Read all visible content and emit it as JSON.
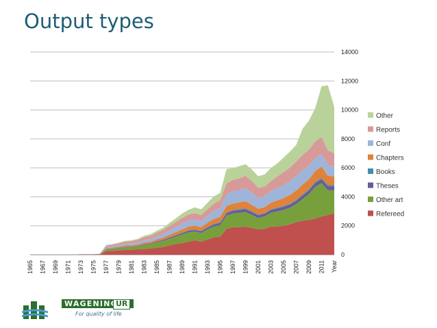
{
  "slide": {
    "title": "Output types"
  },
  "logo": {
    "brand": "WAGENINGEN",
    "brand_suffix": "UR",
    "tagline": "For quality of life"
  },
  "colors": {
    "Refereed": "#c0504d",
    "Other art": "#77a03c",
    "Theses": "#6a5a9b",
    "Books": "#3f8fa8",
    "Chapters": "#e0823a",
    "Conf": "#9fb4d9",
    "Reports": "#d79a99",
    "Other": "#b9d29a"
  },
  "chart_data": {
    "type": "area",
    "stacked": true,
    "xlabel": "Year",
    "ylabel": "",
    "ylim": [
      0,
      14000
    ],
    "y_ticks": [
      0,
      2000,
      4000,
      6000,
      8000,
      10000,
      12000,
      14000
    ],
    "y_axis_side": "right",
    "grid": true,
    "legend": "right, stacked top to bottom",
    "x_tick_labels": [
      "1965",
      "1967",
      "1969",
      "1971",
      "1973",
      "1975",
      "1977",
      "1979",
      "1981",
      "1983",
      "1985",
      "1987",
      "1989",
      "1991",
      "1993",
      "1995",
      "1997",
      "1999",
      "2001",
      "2003",
      "2005",
      "2007",
      "2009",
      "2011"
    ],
    "x": [
      1965,
      1966,
      1967,
      1968,
      1969,
      1970,
      1971,
      1972,
      1973,
      1974,
      1975,
      1976,
      1977,
      1978,
      1979,
      1980,
      1981,
      1982,
      1983,
      1984,
      1985,
      1986,
      1987,
      1988,
      1989,
      1990,
      1991,
      1992,
      1993,
      1994,
      1995,
      1996,
      1997,
      1998,
      1999,
      2000,
      2001,
      2002,
      2003,
      2004,
      2005,
      2006,
      2007,
      2008,
      2009,
      2010,
      2011,
      2012,
      2013
    ],
    "series": [
      {
        "name": "Refereed",
        "values": [
          0,
          0,
          0,
          0,
          0,
          0,
          0,
          0,
          20,
          20,
          20,
          30,
          250,
          270,
          300,
          330,
          350,
          380,
          400,
          430,
          480,
          530,
          650,
          750,
          800,
          900,
          1000,
          900,
          1050,
          1200,
          1250,
          1800,
          1900,
          1900,
          1950,
          1850,
          1750,
          1800,
          1950,
          1950,
          2000,
          2100,
          2250,
          2350,
          2400,
          2500,
          2650,
          2750,
          2850
        ]
      },
      {
        "name": "Other art",
        "values": [
          0,
          0,
          0,
          0,
          0,
          0,
          0,
          0,
          10,
          10,
          10,
          20,
          120,
          130,
          150,
          180,
          180,
          200,
          280,
          300,
          380,
          430,
          450,
          500,
          600,
          650,
          600,
          600,
          700,
          750,
          800,
          900,
          950,
          1000,
          1000,
          900,
          800,
          850,
          950,
          1050,
          1100,
          1150,
          1250,
          1500,
          1800,
          2200,
          2300,
          1700,
          1600
        ]
      },
      {
        "name": "Theses",
        "values": [
          0,
          0,
          0,
          0,
          0,
          0,
          0,
          0,
          0,
          0,
          0,
          0,
          20,
          20,
          30,
          30,
          30,
          30,
          40,
          40,
          50,
          60,
          70,
          80,
          90,
          100,
          100,
          110,
          120,
          130,
          140,
          160,
          170,
          180,
          190,
          180,
          170,
          170,
          180,
          190,
          200,
          210,
          220,
          230,
          240,
          250,
          260,
          270,
          280
        ]
      },
      {
        "name": "Books",
        "values": [
          0,
          0,
          0,
          0,
          0,
          0,
          0,
          0,
          0,
          0,
          0,
          0,
          10,
          10,
          10,
          10,
          10,
          10,
          20,
          20,
          20,
          20,
          30,
          30,
          30,
          40,
          40,
          40,
          40,
          50,
          50,
          60,
          60,
          60,
          60,
          60,
          50,
          50,
          60,
          60,
          60,
          60,
          70,
          70,
          70,
          80,
          80,
          80,
          80
        ]
      },
      {
        "name": "Chapters",
        "values": [
          0,
          0,
          0,
          0,
          0,
          0,
          0,
          0,
          0,
          0,
          0,
          0,
          50,
          60,
          70,
          80,
          80,
          90,
          100,
          110,
          130,
          150,
          180,
          200,
          230,
          250,
          270,
          250,
          300,
          350,
          380,
          450,
          450,
          480,
          500,
          450,
          400,
          420,
          450,
          500,
          550,
          600,
          650,
          700,
          700,
          750,
          800,
          650,
          600
        ]
      },
      {
        "name": "Conf",
        "values": [
          0,
          0,
          0,
          0,
          0,
          0,
          0,
          0,
          10,
          10,
          10,
          10,
          80,
          90,
          100,
          120,
          130,
          150,
          170,
          190,
          220,
          250,
          300,
          350,
          400,
          420,
          430,
          420,
          480,
          550,
          600,
          800,
          850,
          850,
          900,
          850,
          750,
          750,
          800,
          850,
          900,
          950,
          1000,
          1000,
          950,
          900,
          850,
          750,
          700
        ]
      },
      {
        "name": "Reports",
        "values": [
          0,
          0,
          0,
          0,
          0,
          0,
          0,
          0,
          10,
          10,
          10,
          10,
          100,
          110,
          130,
          150,
          160,
          170,
          200,
          220,
          250,
          280,
          320,
          350,
          400,
          420,
          430,
          420,
          450,
          500,
          550,
          750,
          800,
          800,
          850,
          800,
          700,
          650,
          700,
          800,
          900,
          950,
          1000,
          1050,
          1100,
          1150,
          1200,
          1000,
          900
        ]
      },
      {
        "name": "Other",
        "values": [
          0,
          0,
          0,
          0,
          0,
          0,
          0,
          0,
          0,
          0,
          0,
          0,
          40,
          50,
          50,
          60,
          60,
          70,
          100,
          110,
          130,
          150,
          200,
          250,
          300,
          320,
          400,
          400,
          450,
          500,
          500,
          1000,
          800,
          850,
          800,
          800,
          800,
          850,
          900,
          900,
          1000,
          1100,
          1150,
          1800,
          2000,
          2300,
          3500,
          4500,
          3200
        ]
      }
    ]
  }
}
